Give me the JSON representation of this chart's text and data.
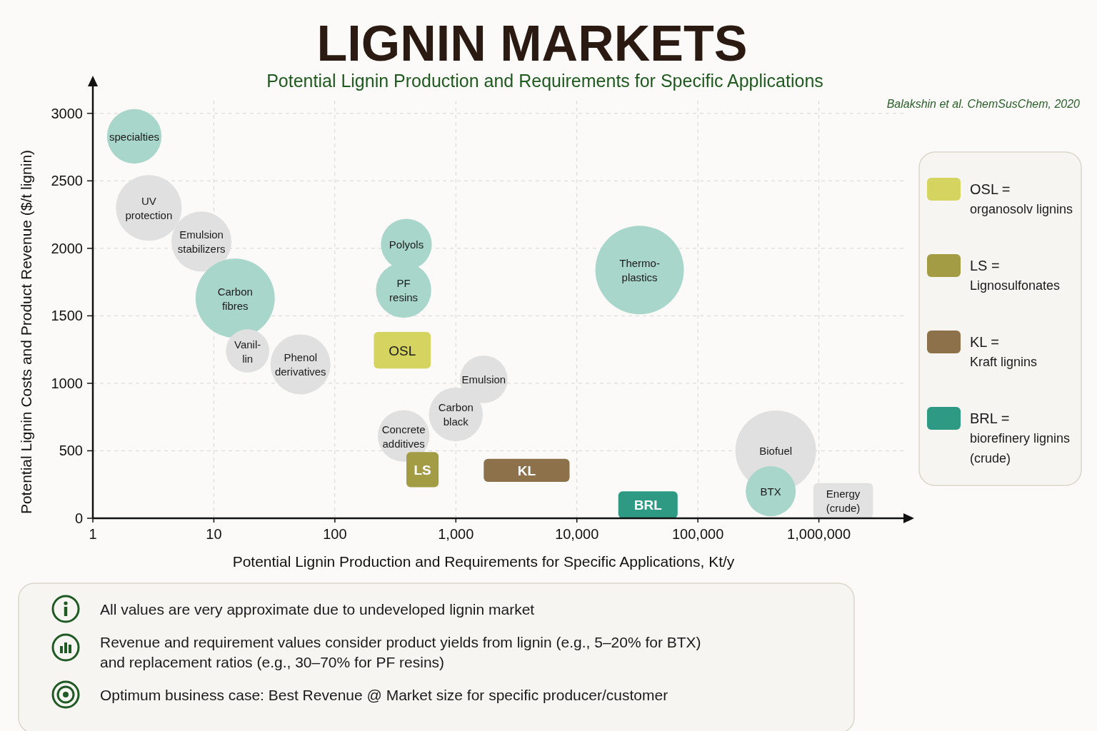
{
  "chart_data": {
    "type": "bubble",
    "title": "LIGNIN MARKETS",
    "subtitle": "Potential Lignin Production and Requirements for Specific Applications",
    "xlabel": "Potential Lignin Production and Requirements for Specific Applications, Kt/y",
    "ylabel": "Potential Lignin Costs and Product Revenue ($/t lignin)",
    "log": "x",
    "xlim": [
      1,
      5000000
    ],
    "xticks": [
      1,
      10,
      100,
      {
        "value": 1000,
        "label": "1,000"
      },
      {
        "value": 10000,
        "label": "10,000"
      },
      {
        "value": 100000,
        "label": "100,000"
      },
      {
        "value": 1000000,
        "label": "1,000,000"
      }
    ],
    "ylim": [
      0,
      3200
    ],
    "yticks": [
      0,
      500,
      1000,
      1500,
      2000,
      2500,
      3000
    ],
    "grid": true,
    "legend": "right",
    "series": [
      {
        "x": [
          2.2,
          2.9,
          7.9,
          15,
          19,
          52,
          390,
          370,
          33000,
          1700,
          1000,
          370,
          440000,
          400000
        ],
        "values": [
          2830,
          2300,
          2050,
          1630,
          1240,
          1140,
          2030,
          1690,
          1840,
          1030,
          770,
          610,
          500,
          200
        ],
        "sizes": [
          0.38,
          0.55,
          0.46,
          0.8,
          0.24,
          0.46,
          0.33,
          0.39,
          1,
          0.29,
          0.37,
          0.34,
          0.83,
          0.32
        ],
        "colors": [
          "#a9d6ca",
          "#e0e0e0",
          "#e0e0e0",
          "#a9d6ca",
          "#e0e0e0",
          "#e0e0e0",
          "#a9d6ca",
          "#a9d6ca",
          "#a9d6ca",
          "#e0e0e0",
          "#e0e0e0",
          "#e0e0e0",
          "#e0e0e0",
          "#a9d6ca"
        ]
      },
      {
        "name": "OSL =\norganosolv lignins",
        "type": "histogram",
        "color": "#d5d461",
        "bins": [
          210,
          620
        ],
        "values": [
          270
        ],
        "base": [
          1110
        ]
      },
      {
        "name": "LS =\nLignosulfonates",
        "type": "histogram",
        "color": "#a39c45",
        "bins": [
          390,
          720
        ],
        "values": [
          260
        ],
        "base": [
          230
        ]
      },
      {
        "name": "KL =\nKraft lignins",
        "type": "histogram",
        "color": "#8c714a",
        "bins": [
          1700,
          8700
        ],
        "values": [
          170
        ],
        "base": [
          270
        ]
      },
      {
        "name": "BRL =\nbiorefinery lignins\n(crude)",
        "type": "histogram",
        "color": "#2e9a83",
        "bins": [
          22000,
          68000
        ],
        "values": [
          200
        ],
        "base": [
          0
        ]
      },
      {
        "type": "histogram",
        "color": "#e2e2e2",
        "bins": [
          900000,
          2800000
        ],
        "values": [
          260
        ],
        "base": [
          0
        ]
      }
    ],
    "annotations": [
      "Balakshin et al. ChemSusChem, 2020",
      "All values are very approximate due to undeveloped lignin market",
      "Revenue and requirement values consider product yields from lignin (e.g., 5–20% for BTX)\nand replacement ratios (e.g., 30–70% for PF resins)",
      "Optimum business case: Best Revenue @ Market size for specific producer/customer",
      {
        "text": "specialties",
        "x": 2.2,
        "y": 2830
      },
      {
        "text": "UV\nprotection",
        "x": 2.9,
        "y": 2300
      },
      {
        "text": "Emulsion\nstabilizers",
        "x": 7.9,
        "y": 2050
      },
      {
        "text": "Carbon\nfibres",
        "x": 15,
        "y": 1630
      },
      {
        "text": "Vanil-\nlin",
        "x": 19,
        "y": 1240
      },
      {
        "text": "Phenol\nderivatives",
        "x": 52,
        "y": 1140
      },
      {
        "text": "Polyols",
        "x": 390,
        "y": 2030
      },
      {
        "text": "PF\nresins",
        "x": 370,
        "y": 1690
      },
      {
        "text": "Thermo-\nplastics",
        "x": 33000,
        "y": 1840
      },
      {
        "text": "Emulsion",
        "x": 1700,
        "y": 1030
      },
      {
        "text": "Carbon\nblack",
        "x": 1000,
        "y": 770
      },
      {
        "text": "Concrete\nadditives",
        "x": 370,
        "y": 610
      },
      {
        "text": "Biofuel",
        "x": 440000,
        "y": 500
      },
      {
        "text": "BTX",
        "x": 400000,
        "y": 200
      },
      {
        "text": "OSL",
        "x": 360,
        "y": 1380
      },
      {
        "text": "LS",
        "x": 530,
        "y": 490
      },
      {
        "text": "KL",
        "x": 3850,
        "y": 440
      },
      {
        "text": "BRL",
        "x": 39000,
        "y": 200
      },
      {
        "text": "Energy\n(crude)",
        "x": 1600000,
        "y": 260
      }
    ]
  }
}
